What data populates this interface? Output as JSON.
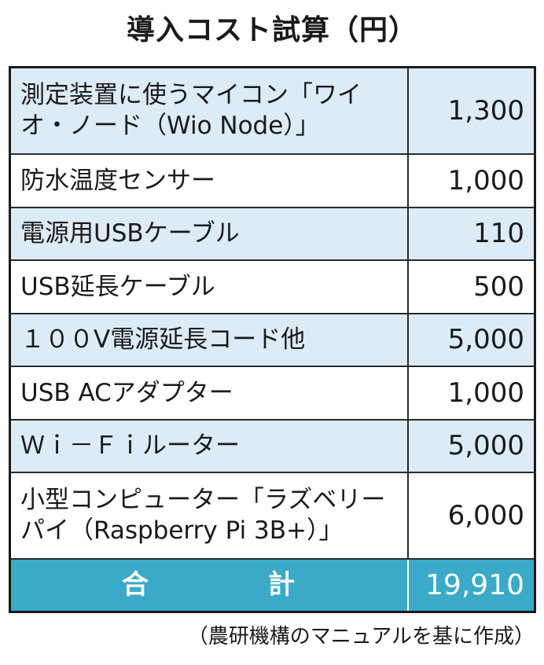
{
  "title": "導入コスト試算（円）",
  "rows": [
    {
      "item": "測定装置に使うマイコン「ワイオ・ノード（Wio Node）」",
      "price": "1,300"
    },
    {
      "item": "防水温度センサー",
      "price": "1,000"
    },
    {
      "item": "電源用USBケーブル",
      "price": "110"
    },
    {
      "item": "USB延長ケーブル",
      "price": "500"
    },
    {
      "item": "１００V電源延長コード他",
      "price": "5,000"
    },
    {
      "item": "USB ACアダプター",
      "price": "1,000"
    },
    {
      "item": "Ｗｉ－Ｆｉルーター",
      "price": "5,000"
    },
    {
      "item": "小型コンピューター「ラズベリーパイ（Raspberry Pi 3B+）」",
      "price": "6,000"
    }
  ],
  "total": {
    "label_1": "合",
    "label_2": "計",
    "value": "19,910"
  },
  "source": "（農研機構のマニュアルを基に作成）",
  "colors": {
    "row_shade": "#dcebf6",
    "total_bg": "#3aaac8"
  }
}
